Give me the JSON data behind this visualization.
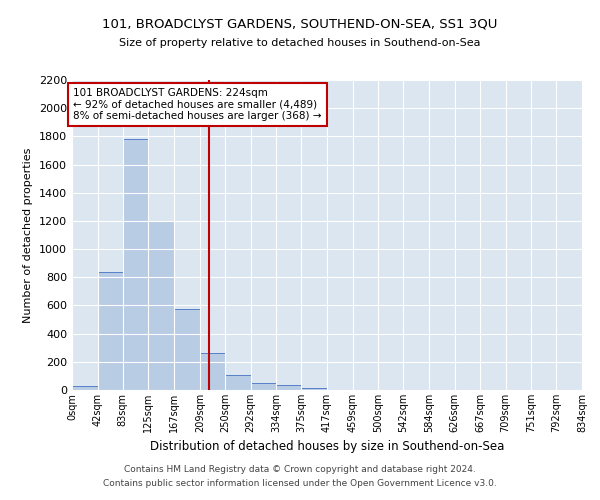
{
  "title": "101, BROADCLYST GARDENS, SOUTHEND-ON-SEA, SS1 3QU",
  "subtitle": "Size of property relative to detached houses in Southend-on-Sea",
  "xlabel": "Distribution of detached houses by size in Southend-on-Sea",
  "ylabel": "Number of detached properties",
  "footer_line1": "Contains HM Land Registry data © Crown copyright and database right 2024.",
  "footer_line2": "Contains public sector information licensed under the Open Government Licence v3.0.",
  "annotation_line1": "101 BROADCLYST GARDENS: 224sqm",
  "annotation_line2": "← 92% of detached houses are smaller (4,489)",
  "annotation_line3": "8% of semi-detached houses are larger (368) →",
  "property_size": 224,
  "bin_edges": [
    0,
    42,
    83,
    125,
    167,
    209,
    250,
    292,
    334,
    375,
    417,
    459,
    500,
    542,
    584,
    626,
    667,
    709,
    751,
    792,
    834
  ],
  "bar_heights": [
    25,
    840,
    1780,
    1200,
    575,
    260,
    110,
    50,
    35,
    15,
    0,
    0,
    0,
    0,
    0,
    0,
    0,
    0,
    0,
    0
  ],
  "bar_color": "#b8cce4",
  "bar_edgecolor": "#4472c4",
  "vline_color": "#c00000",
  "vline_x": 224,
  "background_color": "#dce6f1",
  "grid_color": "#ffffff",
  "ylim": [
    0,
    2200
  ],
  "yticks": [
    0,
    200,
    400,
    600,
    800,
    1000,
    1200,
    1400,
    1600,
    1800,
    2000,
    2200
  ]
}
